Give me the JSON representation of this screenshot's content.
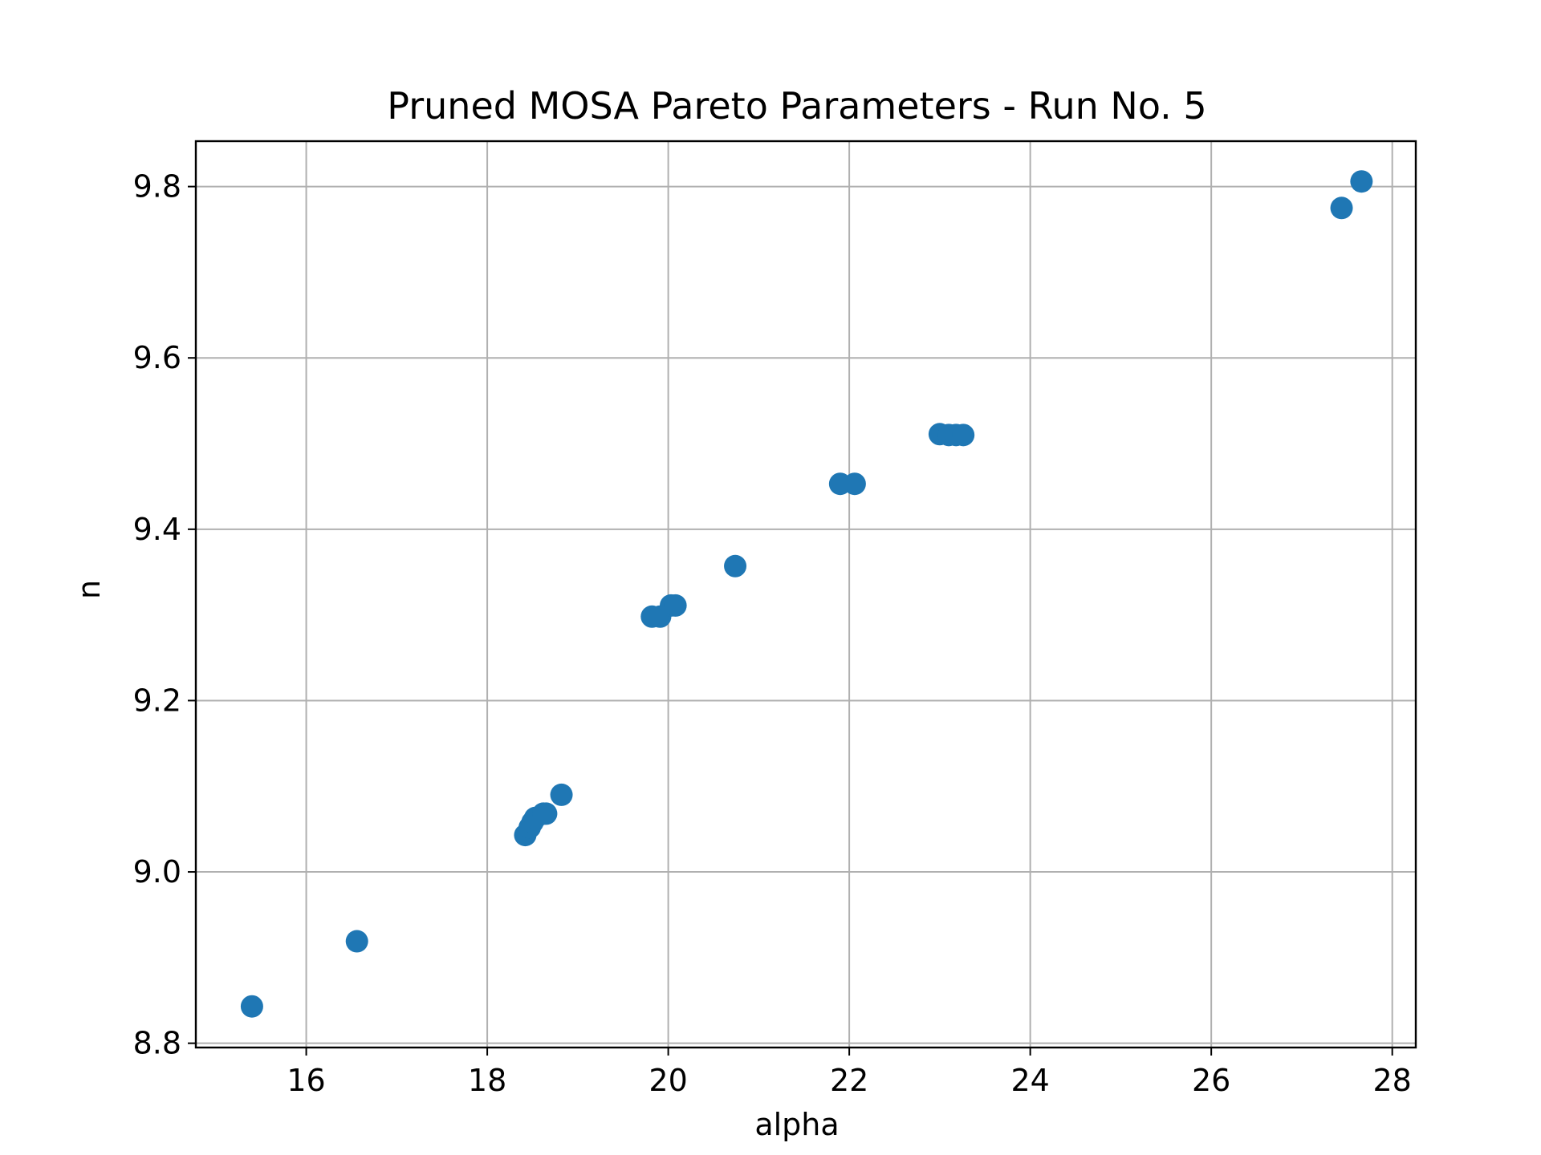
{
  "chart_data": {
    "type": "scatter",
    "title": "Pruned MOSA Pareto Parameters - Run No. 5",
    "xlabel": "alpha",
    "ylabel": "n",
    "xlim": [
      14.78,
      28.26
    ],
    "ylim": [
      8.795,
      9.853
    ],
    "xticks": [
      16,
      18,
      20,
      22,
      24,
      26,
      28
    ],
    "yticks": [
      8.8,
      9.0,
      9.2,
      9.4,
      9.6,
      9.8
    ],
    "grid": true,
    "series": [
      {
        "color": "#1f77b4",
        "points": [
          {
            "x": 15.4,
            "y": 8.843
          },
          {
            "x": 16.56,
            "y": 8.919
          },
          {
            "x": 18.42,
            "y": 9.043
          },
          {
            "x": 18.47,
            "y": 9.052
          },
          {
            "x": 18.5,
            "y": 9.058
          },
          {
            "x": 18.53,
            "y": 9.063
          },
          {
            "x": 18.62,
            "y": 9.068
          },
          {
            "x": 18.65,
            "y": 9.068
          },
          {
            "x": 18.82,
            "y": 9.09
          },
          {
            "x": 19.82,
            "y": 9.298
          },
          {
            "x": 19.91,
            "y": 9.298
          },
          {
            "x": 20.03,
            "y": 9.311
          },
          {
            "x": 20.08,
            "y": 9.311
          },
          {
            "x": 20.74,
            "y": 9.357
          },
          {
            "x": 21.9,
            "y": 9.453
          },
          {
            "x": 22.06,
            "y": 9.453
          },
          {
            "x": 23.0,
            "y": 9.511
          },
          {
            "x": 23.1,
            "y": 9.51
          },
          {
            "x": 23.18,
            "y": 9.51
          },
          {
            "x": 23.26,
            "y": 9.51
          },
          {
            "x": 27.44,
            "y": 9.775
          },
          {
            "x": 27.66,
            "y": 9.806
          }
        ]
      }
    ]
  }
}
